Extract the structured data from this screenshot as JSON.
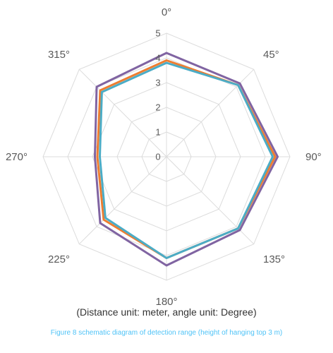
{
  "chart_data": {
    "type": "radar",
    "categories": [
      "0°",
      "45°",
      "90°",
      "135°",
      "180°",
      "225°",
      "270°",
      "315°"
    ],
    "radial_tick_labels": [
      "0",
      "1",
      "2",
      "3",
      "4",
      "5"
    ],
    "rlim": [
      0,
      5
    ],
    "grid": true,
    "series": [
      {
        "color": "#8064a2",
        "values": [
          4.2,
          4.2,
          4.5,
          4.2,
          4.4,
          3.8,
          2.9,
          4.0
        ]
      },
      {
        "color": "#ed7d31",
        "values": [
          3.9,
          4.1,
          4.4,
          4.1,
          4.1,
          3.6,
          2.8,
          3.8
        ]
      },
      {
        "color": "#4bacc6",
        "values": [
          3.8,
          4.1,
          4.3,
          4.1,
          4.1,
          3.5,
          2.7,
          3.7
        ]
      }
    ]
  },
  "caption_units": "(Distance unit: meter, angle unit: Degree)",
  "caption_figure": "Figure 8 schematic diagram of detection range (height of hanging top 3 m)"
}
